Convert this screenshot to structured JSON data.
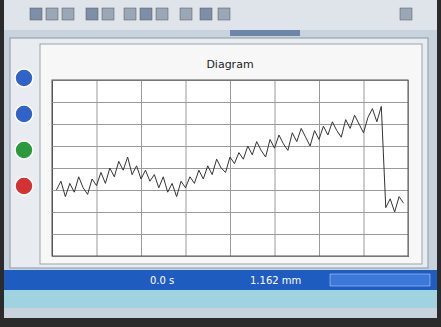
{
  "chart_data": {
    "type": "line",
    "title": "Diagram",
    "x": [
      1,
      2,
      3,
      4,
      5,
      6,
      7,
      8,
      9,
      10,
      11,
      12,
      13,
      14,
      15,
      16,
      17,
      18,
      19,
      20,
      21,
      22,
      23,
      24,
      25,
      26,
      27,
      28,
      29,
      30,
      31,
      32,
      33,
      34,
      35,
      36,
      37,
      38,
      39,
      40,
      41,
      42,
      43,
      44,
      45,
      46,
      47,
      48,
      49,
      50,
      51,
      52,
      53,
      54,
      55,
      56,
      57,
      58,
      59,
      60,
      61,
      62,
      63,
      64,
      65,
      66,
      67,
      68,
      69,
      70,
      71,
      72,
      73,
      74,
      75,
      76,
      77,
      78,
      79
    ],
    "values": [
      30,
      34,
      27,
      33,
      29,
      36,
      31,
      28,
      35,
      32,
      38,
      33,
      40,
      36,
      43,
      39,
      45,
      37,
      41,
      35,
      39,
      34,
      37,
      31,
      36,
      29,
      33,
      27,
      34,
      31,
      36,
      33,
      39,
      35,
      41,
      37,
      44,
      40,
      38,
      45,
      42,
      47,
      44,
      50,
      46,
      52,
      48,
      45,
      53,
      49,
      55,
      51,
      48,
      56,
      52,
      58,
      54,
      50,
      57,
      53,
      59,
      55,
      61,
      57,
      54,
      62,
      58,
      64,
      60,
      56,
      63,
      67,
      61,
      68,
      22,
      26,
      20,
      27,
      24
    ],
    "color": "#333333",
    "xlim": [
      0,
      80
    ],
    "xticks": [
      0,
      10,
      20,
      30,
      40,
      50,
      60,
      70,
      80
    ],
    "ylim": [
      0,
      80
    ],
    "yticks": [
      0,
      10,
      20,
      30,
      40,
      50,
      60,
      70,
      80
    ],
    "grid": true,
    "tick_labels": false,
    "annotations": [
      "0.0 s",
      "1.162 mm"
    ]
  }
}
